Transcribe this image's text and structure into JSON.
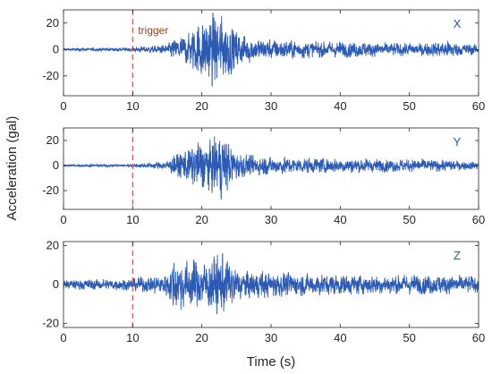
{
  "chart_data": [
    {
      "type": "line",
      "component": "X",
      "xlim": [
        0,
        60
      ],
      "ylim": [
        -35,
        30
      ],
      "x_ticks": [
        0,
        10,
        20,
        30,
        40,
        50,
        60
      ],
      "y_ticks": [
        -20,
        0,
        20
      ],
      "trigger_time": 10,
      "trigger_label": "trigger",
      "series": [
        {
          "color": "#2b5bb5",
          "envelope": [
            [
              0,
              1
            ],
            [
              5,
              1.2
            ],
            [
              9.5,
              1.5
            ],
            [
              10.5,
              2
            ],
            [
              12,
              2.5
            ],
            [
              14,
              3
            ],
            [
              15,
              4
            ],
            [
              16,
              8
            ],
            [
              18,
              12
            ],
            [
              19,
              18
            ],
            [
              20,
              24
            ],
            [
              21,
              28
            ],
            [
              22,
              28
            ],
            [
              23,
              25
            ],
            [
              24,
              20
            ],
            [
              25,
              15
            ],
            [
              26,
              12
            ],
            [
              27,
              10
            ],
            [
              29,
              8
            ],
            [
              33,
              7
            ],
            [
              38,
              6
            ],
            [
              43,
              6
            ],
            [
              48,
              5
            ],
            [
              53,
              5
            ],
            [
              56,
              7
            ],
            [
              57,
              5
            ],
            [
              60,
              4
            ]
          ]
        }
      ]
    },
    {
      "type": "line",
      "component": "Y",
      "xlim": [
        0,
        60
      ],
      "ylim": [
        -35,
        30
      ],
      "x_ticks": [
        0,
        10,
        20,
        30,
        40,
        50,
        60
      ],
      "y_ticks": [
        -20,
        0,
        20
      ],
      "trigger_time": 10,
      "series": [
        {
          "color": "#2b5bb5",
          "envelope": [
            [
              0,
              0.8
            ],
            [
              5,
              1
            ],
            [
              9.5,
              1.2
            ],
            [
              10.5,
              1.5
            ],
            [
              12,
              2
            ],
            [
              14,
              3
            ],
            [
              15,
              4
            ],
            [
              16,
              8
            ],
            [
              18,
              14
            ],
            [
              19,
              17
            ],
            [
              20,
              20
            ],
            [
              21,
              20
            ],
            [
              22,
              24
            ],
            [
              23,
              28
            ],
            [
              24,
              18
            ],
            [
              25,
              12
            ],
            [
              26,
              9
            ],
            [
              28,
              8
            ],
            [
              31,
              7
            ],
            [
              36,
              6
            ],
            [
              42,
              6
            ],
            [
              48,
              5
            ],
            [
              53,
              5
            ],
            [
              57,
              4
            ],
            [
              60,
              3
            ]
          ]
        }
      ]
    },
    {
      "type": "line",
      "component": "Z",
      "xlim": [
        0,
        60
      ],
      "ylim": [
        -22,
        22
      ],
      "x_ticks": [
        0,
        10,
        20,
        30,
        40,
        50,
        60
      ],
      "y_ticks": [
        -20,
        0,
        20
      ],
      "trigger_time": 10,
      "series": [
        {
          "color": "#2b5bb5",
          "envelope": [
            [
              0,
              2.5
            ],
            [
              5,
              2.8
            ],
            [
              9.5,
              3
            ],
            [
              10.5,
              3.5
            ],
            [
              12,
              4
            ],
            [
              14,
              5
            ],
            [
              15,
              6
            ],
            [
              16,
              14
            ],
            [
              18,
              12
            ],
            [
              19,
              13
            ],
            [
              20,
              12
            ],
            [
              21,
              13
            ],
            [
              22,
              15
            ],
            [
              23,
              16
            ],
            [
              24,
              12
            ],
            [
              25,
              9
            ],
            [
              26,
              7
            ],
            [
              28,
              7
            ],
            [
              33,
              6
            ],
            [
              38,
              5.5
            ],
            [
              43,
              5
            ],
            [
              48,
              5
            ],
            [
              53,
              5
            ],
            [
              57,
              5
            ],
            [
              60,
              4
            ]
          ]
        }
      ]
    }
  ],
  "axes": {
    "ylabel": "Acceleration (gal)",
    "xlabel": "Time (s)"
  },
  "colors": {
    "trace": "#2b5bb5",
    "trigger_line": "#d9534f",
    "label_text": "#2255aa"
  }
}
